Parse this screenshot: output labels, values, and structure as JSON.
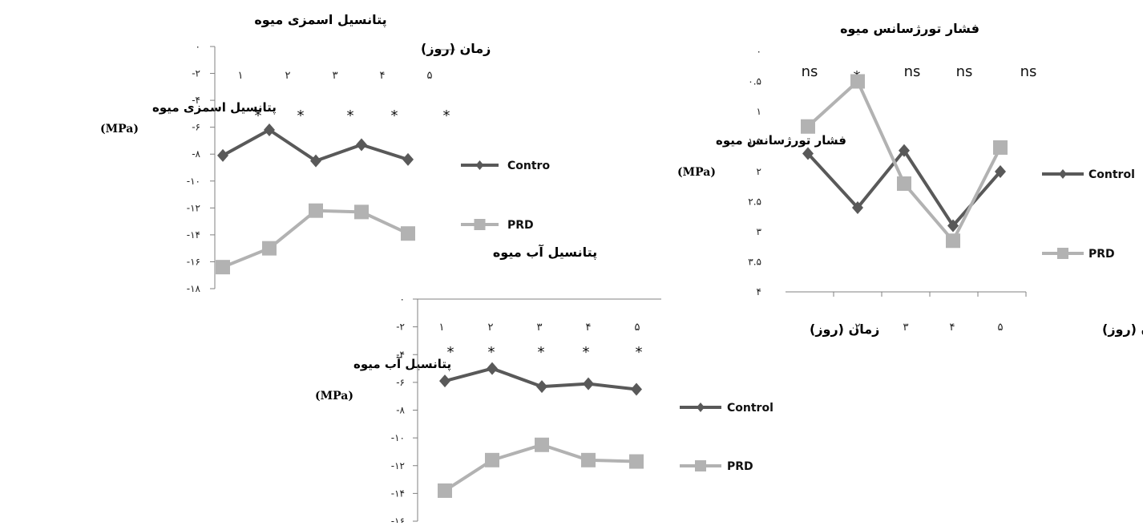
{
  "colors": {
    "control": "#595959",
    "prd": "#b2b2b2",
    "axis": "#808080"
  },
  "chart_data": [
    {
      "id": "osmotic",
      "type": "line",
      "title": "پتانسیل اسمزی میوه",
      "ylabel": "پتانسیل اسمزی میوه",
      "yunit": "(MPa)",
      "xlabel": "زمان (روز)",
      "ylim": [
        -18,
        0
      ],
      "yticks": [
        "۰",
        "-۲",
        "-۴",
        "-۶",
        "-۸",
        "-۱۰",
        "-۱۲",
        "-۱۴",
        "-۱۶",
        "-۱۸"
      ],
      "categories": [
        "۱",
        "۲",
        "۳",
        "۴",
        "۵"
      ],
      "significance": [
        "*",
        "*",
        "*",
        "*",
        "*"
      ],
      "series": [
        {
          "name": "Contro",
          "values": [
            -8.1,
            -6.2,
            -8.5,
            -7.3,
            -8.4
          ]
        },
        {
          "name": "PRD",
          "values": [
            -16.4,
            -15.0,
            -12.2,
            -12.3,
            -13.9
          ]
        }
      ]
    },
    {
      "id": "water",
      "type": "line",
      "title": "پتانسیل آب میوه",
      "ylabel": "پتانسیل آب میوه",
      "yunit": "(MPa)",
      "ylim": [
        -16,
        0
      ],
      "yticks": [
        "۰",
        "-۲",
        "-۴",
        "-۶",
        "-۸",
        "-۱۰",
        "-۱۲",
        "-۱۴",
        "-۱۶"
      ],
      "categories": [
        "۱",
        "۲",
        "۳",
        "۴",
        "۵"
      ],
      "significance": [
        "*",
        "*",
        "*",
        "*",
        "*"
      ],
      "series": [
        {
          "name": "Control",
          "values": [
            -5.9,
            -5.0,
            -6.3,
            -6.1,
            -6.5
          ]
        },
        {
          "name": "PRD",
          "values": [
            -13.8,
            -11.6,
            -10.5,
            -11.6,
            -11.7
          ]
        }
      ]
    },
    {
      "id": "turgor",
      "type": "line",
      "title": "فشار تورژسانس میوه",
      "ylabel": "فشار تورژسانس میوه",
      "yunit": "(MPa)",
      "xlabel": "زمان (روز)",
      "ylim": [
        0,
        4
      ],
      "yticks": [
        "۰",
        "۰.۵",
        "۱",
        "۱.۵",
        "۲",
        "۲.۵",
        "۳",
        "۳.۵",
        "۴"
      ],
      "categories": [
        "",
        "۲",
        "۳",
        "۴",
        "۵"
      ],
      "significance": [
        "ns",
        "*",
        "ns",
        "ns",
        "ns"
      ],
      "series": [
        {
          "name": "Control",
          "values": [
            2.3,
            1.4,
            2.35,
            1.1,
            2.0
          ]
        },
        {
          "name": "PRD",
          "values": [
            2.75,
            3.5,
            1.8,
            0.85,
            2.4
          ]
        }
      ]
    }
  ]
}
